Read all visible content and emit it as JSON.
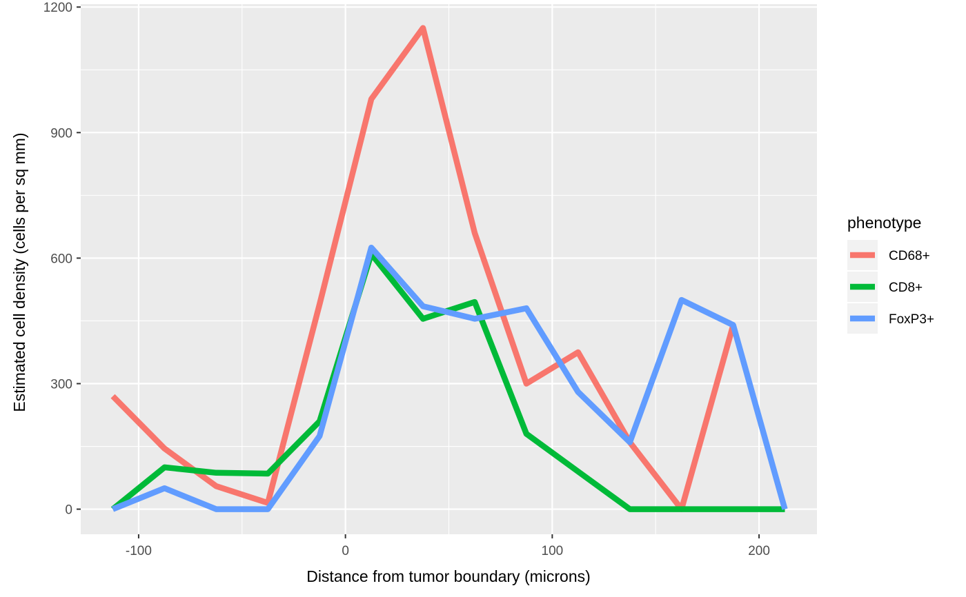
{
  "chart_data": {
    "type": "line",
    "xlabel": "Distance from tumor boundary (microns)",
    "ylabel": "Estimated cell density (cells per sq mm)",
    "xlim": [
      -128,
      228
    ],
    "ylim": [
      -60,
      1207
    ],
    "x_ticks": [
      -100,
      0,
      100,
      200
    ],
    "x_tick_labels": [
      "-100",
      "0",
      "100",
      "200"
    ],
    "x_minor_ticks": [
      -50,
      50,
      150
    ],
    "y_ticks": [
      0,
      300,
      600,
      900,
      1200
    ],
    "y_tick_labels": [
      "0",
      "300",
      "600",
      "900",
      "1200"
    ],
    "y_minor_ticks": [
      150,
      450,
      750,
      1050
    ],
    "grid": true,
    "legend": {
      "title": "phenotype",
      "position": "right"
    },
    "series": [
      {
        "name": "CD68+",
        "color": "#F8766D",
        "x": [
          -112.5,
          -87.5,
          -62.5,
          -37.5,
          -12.5,
          12.5,
          37.5,
          62.5,
          87.5,
          112.5,
          137.5,
          162.5,
          187.5
        ],
        "y": [
          270,
          145,
          55,
          15,
          490,
          980,
          1150,
          660,
          300,
          375,
          160,
          0,
          440
        ]
      },
      {
        "name": "CD8+",
        "color": "#00BA38",
        "x": [
          -112.5,
          -87.5,
          -62.5,
          -37.5,
          -12.5,
          12.5,
          37.5,
          62.5,
          87.5,
          112.5,
          137.5,
          162.5,
          187.5,
          212.5
        ],
        "y": [
          0,
          100,
          87,
          85,
          210,
          610,
          455,
          495,
          180,
          90,
          0,
          0,
          0,
          0
        ]
      },
      {
        "name": "FoxP3+",
        "color": "#619CFF",
        "x": [
          -112.5,
          -87.5,
          -62.5,
          -37.5,
          -12.5,
          12.5,
          37.5,
          62.5,
          87.5,
          112.5,
          137.5,
          162.5,
          187.5,
          212.5
        ],
        "y": [
          0,
          50,
          0,
          0,
          175,
          625,
          485,
          455,
          480,
          280,
          160,
          500,
          440,
          0
        ]
      }
    ]
  }
}
